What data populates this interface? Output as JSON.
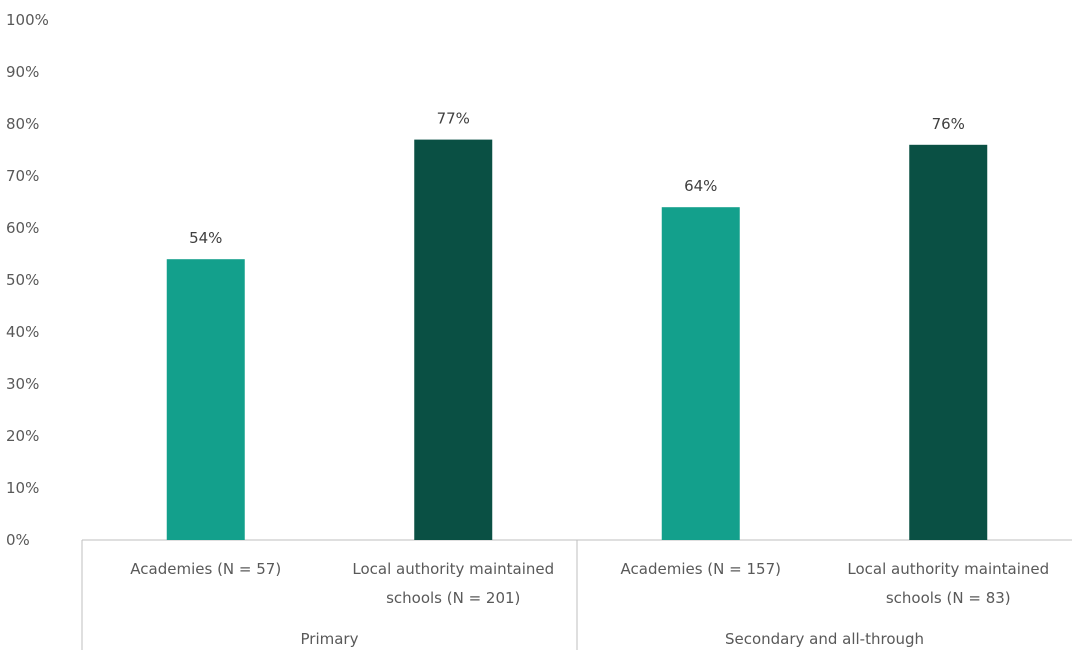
{
  "chart_data": {
    "type": "bar",
    "y_ticks": [
      "0%",
      "10%",
      "20%",
      "30%",
      "40%",
      "50%",
      "60%",
      "70%",
      "80%",
      "90%",
      "100%"
    ],
    "ylim": [
      0,
      100
    ],
    "grid": false,
    "groups": [
      {
        "label": "Primary",
        "bars": [
          {
            "category": [
              "Academies (N = 57)"
            ],
            "value": 54,
            "data_label": "54%",
            "color": "#13a08c"
          },
          {
            "category": [
              "Local authority maintained",
              "schools (N = 201)"
            ],
            "value": 77,
            "data_label": "77%",
            "color": "#0a5044"
          }
        ]
      },
      {
        "label": "Secondary and all-through",
        "bars": [
          {
            "category": [
              "Academies (N = 157)"
            ],
            "value": 64,
            "data_label": "64%",
            "color": "#13a08c"
          },
          {
            "category": [
              "Local authority maintained",
              "schools (N = 83)"
            ],
            "value": 76,
            "data_label": "76%",
            "color": "#0a5044"
          }
        ]
      }
    ]
  }
}
